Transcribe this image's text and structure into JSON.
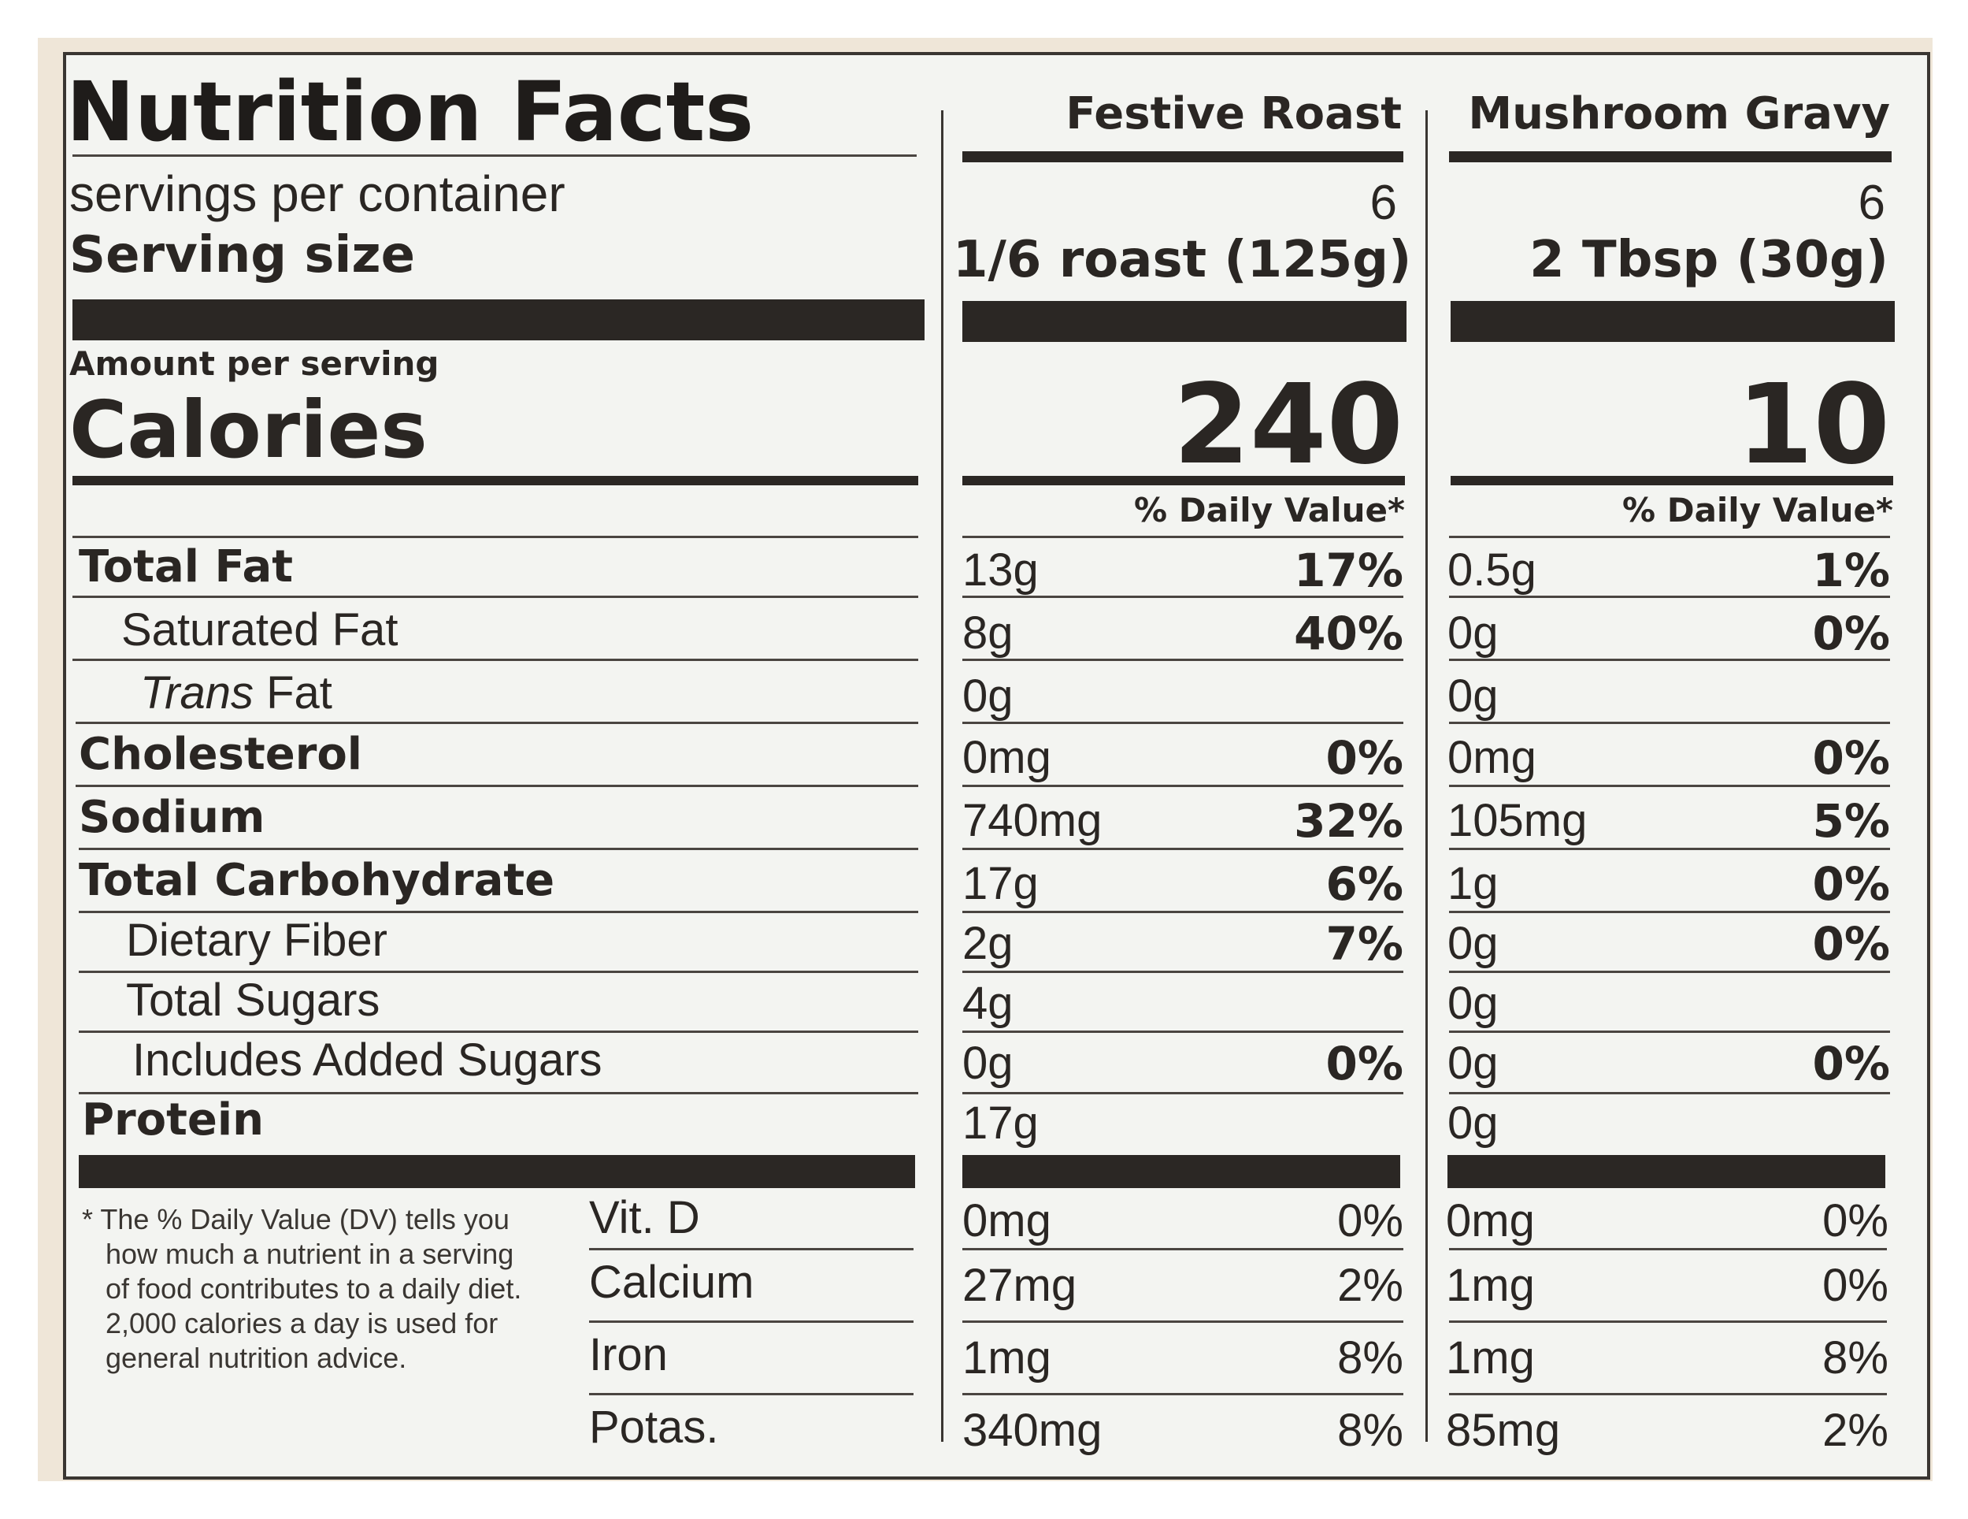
{
  "title": "Nutrition Facts",
  "columns": [
    {
      "name": "Festive Roast",
      "servings": "6",
      "serving_size": "1/6 roast (125g)",
      "calories": "240"
    },
    {
      "name": "Mushroom Gravy",
      "servings": "6",
      "serving_size": "2 Tbsp (30g)",
      "calories": "10"
    }
  ],
  "servings_label": "servings per container",
  "serving_size_label": "Serving size",
  "amount_label": "Amount per serving",
  "calories_label": "Calories",
  "dv_header": "% Daily Value*",
  "nutrients": [
    {
      "label": "Total Fat",
      "roast_amt": "13g",
      "roast_dv": "17%",
      "gravy_amt": "0.5g",
      "gravy_dv": "1%"
    },
    {
      "label": "Saturated Fat",
      "roast_amt": "8g",
      "roast_dv": "40%",
      "gravy_amt": "0g",
      "gravy_dv": "0%"
    },
    {
      "label_italic": "Trans",
      "label": " Fat",
      "roast_amt": "0g",
      "roast_dv": "",
      "gravy_amt": "0g",
      "gravy_dv": ""
    },
    {
      "label": "Cholesterol",
      "roast_amt": "0mg",
      "roast_dv": "0%",
      "gravy_amt": "0mg",
      "gravy_dv": "0%"
    },
    {
      "label": "Sodium",
      "roast_amt": "740mg",
      "roast_dv": "32%",
      "gravy_amt": "105mg",
      "gravy_dv": "5%"
    },
    {
      "label": "Total Carbohydrate",
      "roast_amt": "17g",
      "roast_dv": "6%",
      "gravy_amt": "1g",
      "gravy_dv": "0%"
    },
    {
      "label": "Dietary Fiber",
      "roast_amt": "2g",
      "roast_dv": "7%",
      "gravy_amt": "0g",
      "gravy_dv": "0%"
    },
    {
      "label": "Total Sugars",
      "roast_amt": "4g",
      "roast_dv": "",
      "gravy_amt": "0g",
      "gravy_dv": ""
    },
    {
      "label": "Includes Added Sugars",
      "roast_amt": "0g",
      "roast_dv": "0%",
      "gravy_amt": "0g",
      "gravy_dv": "0%"
    },
    {
      "label": "Protein",
      "roast_amt": "17g",
      "roast_dv": "",
      "gravy_amt": "0g",
      "gravy_dv": ""
    }
  ],
  "footnote": [
    "* The % Daily Value (DV) tells you",
    "how much a nutrient in a serving",
    "of food contributes to a daily diet.",
    "2,000 calories a day is used for",
    "general nutrition advice."
  ],
  "vitamins": [
    {
      "label": "Vit. D",
      "roast_amt": "0mg",
      "roast_dv": "0%",
      "gravy_amt": "0mg",
      "gravy_dv": "0%"
    },
    {
      "label": "Calcium",
      "roast_amt": "27mg",
      "roast_dv": "2%",
      "gravy_amt": "1mg",
      "gravy_dv": "0%"
    },
    {
      "label": "Iron",
      "roast_amt": "1mg",
      "roast_dv": "8%",
      "gravy_amt": "1mg",
      "gravy_dv": "8%"
    },
    {
      "label": "Potas.",
      "roast_amt": "340mg",
      "roast_dv": "8%",
      "gravy_amt": "85mg",
      "gravy_dv": "2%"
    }
  ]
}
